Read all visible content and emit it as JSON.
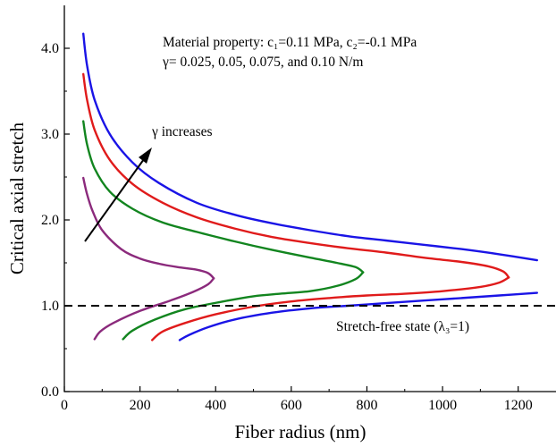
{
  "chart_data": {
    "type": "line",
    "xlabel": "Fiber radius (nm)",
    "ylabel": "Critical axial stretch",
    "xlim": [
      0,
      1300
    ],
    "ylim": [
      0,
      4.5
    ],
    "x_ticks": [
      0,
      200,
      400,
      600,
      800,
      1000,
      1200
    ],
    "y_ticks": [
      0.0,
      1.0,
      2.0,
      3.0,
      4.0
    ],
    "y_tick_labels": [
      "0.0",
      "1.0",
      "2.0",
      "3.0",
      "4.0"
    ],
    "grid": false,
    "legend": "none",
    "annotations": {
      "material_line1": "Material property: c₁=0.11 MPa, c₂=-0.1 MPa",
      "material_line2": "γ= 0.025, 0.05, 0.075, and 0.10 N/m",
      "gamma_arrow": "γ increases",
      "stretch_free": "Stretch-free state (λ₃=1)"
    },
    "reference_line": {
      "y": 1.0,
      "style": "dashed",
      "color": "#000000"
    },
    "series": [
      {
        "color": "#8b2a7c",
        "upper": [
          [
            50,
            2.49
          ],
          [
            60,
            2.3
          ],
          [
            75,
            2.1
          ],
          [
            100,
            1.88
          ],
          [
            150,
            1.66
          ],
          [
            200,
            1.55
          ],
          [
            250,
            1.49
          ],
          [
            300,
            1.45
          ],
          [
            350,
            1.42
          ],
          [
            380,
            1.38
          ],
          [
            395,
            1.32
          ]
        ],
        "lower": [
          [
            395,
            1.32
          ],
          [
            380,
            1.25
          ],
          [
            340,
            1.16
          ],
          [
            280,
            1.06
          ],
          [
            200,
            0.94
          ],
          [
            130,
            0.8
          ],
          [
            95,
            0.7
          ],
          [
            80,
            0.61
          ]
        ]
      },
      {
        "color": "#12851f",
        "upper": [
          [
            50,
            3.15
          ],
          [
            60,
            2.88
          ],
          [
            80,
            2.6
          ],
          [
            120,
            2.33
          ],
          [
            180,
            2.13
          ],
          [
            260,
            1.97
          ],
          [
            350,
            1.86
          ],
          [
            450,
            1.75
          ],
          [
            550,
            1.65
          ],
          [
            650,
            1.56
          ],
          [
            720,
            1.5
          ],
          [
            770,
            1.45
          ],
          [
            790,
            1.39
          ]
        ],
        "lower": [
          [
            790,
            1.39
          ],
          [
            770,
            1.31
          ],
          [
            720,
            1.23
          ],
          [
            650,
            1.17
          ],
          [
            570,
            1.14
          ],
          [
            500,
            1.11
          ],
          [
            420,
            1.05
          ],
          [
            320,
            0.96
          ],
          [
            240,
            0.84
          ],
          [
            180,
            0.71
          ],
          [
            155,
            0.61
          ]
        ]
      },
      {
        "color": "#e01b1b",
        "upper": [
          [
            50,
            3.7
          ],
          [
            60,
            3.4
          ],
          [
            80,
            3.05
          ],
          [
            120,
            2.7
          ],
          [
            180,
            2.42
          ],
          [
            260,
            2.2
          ],
          [
            350,
            2.03
          ],
          [
            450,
            1.9
          ],
          [
            550,
            1.8
          ],
          [
            650,
            1.73
          ],
          [
            750,
            1.67
          ],
          [
            850,
            1.62
          ],
          [
            950,
            1.56
          ],
          [
            1050,
            1.51
          ],
          [
            1120,
            1.46
          ],
          [
            1160,
            1.4
          ],
          [
            1175,
            1.33
          ]
        ],
        "lower": [
          [
            1175,
            1.33
          ],
          [
            1150,
            1.27
          ],
          [
            1100,
            1.22
          ],
          [
            1000,
            1.17
          ],
          [
            900,
            1.14
          ],
          [
            800,
            1.12
          ],
          [
            700,
            1.09
          ],
          [
            600,
            1.05
          ],
          [
            500,
            0.99
          ],
          [
            400,
            0.9
          ],
          [
            320,
            0.8
          ],
          [
            260,
            0.7
          ],
          [
            232,
            0.6
          ]
        ]
      },
      {
        "color": "#1a14e6",
        "upper": [
          [
            50,
            4.17
          ],
          [
            60,
            3.8
          ],
          [
            80,
            3.4
          ],
          [
            120,
            3.0
          ],
          [
            180,
            2.67
          ],
          [
            250,
            2.43
          ],
          [
            350,
            2.2
          ],
          [
            450,
            2.06
          ],
          [
            550,
            1.96
          ],
          [
            650,
            1.88
          ],
          [
            750,
            1.81
          ],
          [
            850,
            1.76
          ],
          [
            950,
            1.71
          ],
          [
            1050,
            1.66
          ],
          [
            1150,
            1.6
          ],
          [
            1250,
            1.53
          ]
        ],
        "lower": [
          [
            1250,
            1.15
          ],
          [
            1150,
            1.12
          ],
          [
            1050,
            1.09
          ],
          [
            950,
            1.06
          ],
          [
            850,
            1.03
          ],
          [
            750,
            1.0
          ],
          [
            650,
            0.97
          ],
          [
            550,
            0.92
          ],
          [
            450,
            0.84
          ],
          [
            380,
            0.75
          ],
          [
            330,
            0.66
          ],
          [
            305,
            0.6
          ]
        ]
      }
    ]
  }
}
